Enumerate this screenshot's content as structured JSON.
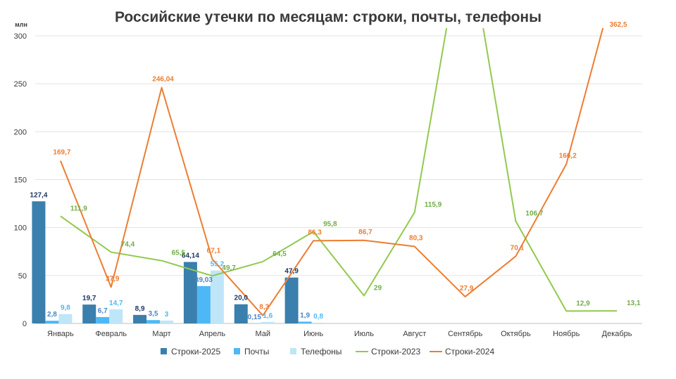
{
  "chart_data": {
    "type": "bar",
    "title": "Российские утечки по месяцам: строки, почты, телефоны",
    "ylabel": "млн",
    "ylim": [
      0,
      300
    ],
    "yticks": [
      0,
      50,
      100,
      150,
      200,
      250,
      300
    ],
    "grid": true,
    "legend_position": "bottom",
    "categories": [
      "Январь",
      "Февраль",
      "Март",
      "Апрель",
      "Май",
      "Июнь",
      "Июль",
      "Август",
      "Сентябрь",
      "Октябрь",
      "Ноябрь",
      "Декабрь"
    ],
    "bar_series": [
      {
        "name": "Строки-2025",
        "color": "#3a7fad",
        "label_color": "#1f3864",
        "values": [
          127.4,
          19.7,
          8.9,
          64.14,
          20.0,
          47.9,
          null,
          null,
          null,
          null,
          null,
          null
        ],
        "labels": [
          "127,4",
          "19,7",
          "8,9",
          "64,14",
          "20,0",
          "47,9",
          "",
          "",
          "",
          "",
          "",
          ""
        ]
      },
      {
        "name": "Почты",
        "color": "#4db8f5",
        "label_color": "#4a86c5",
        "values": [
          2.8,
          6.7,
          3.5,
          39.03,
          0.15,
          1.9,
          null,
          null,
          null,
          null,
          null,
          null
        ],
        "labels": [
          "2,8",
          "6,7",
          "3,5",
          "39,03",
          "0,15",
          "1,9",
          "",
          "",
          "",
          "",
          "",
          ""
        ]
      },
      {
        "name": "Телефоны",
        "color": "#bfe6f8",
        "label_color": "#4db8f5",
        "values": [
          9.8,
          14.7,
          3,
          55.2,
          1.6,
          0.8,
          null,
          null,
          null,
          null,
          null,
          null
        ],
        "labels": [
          "9,8",
          "14,7",
          "3",
          "55,2",
          "1,6",
          "0,8",
          "",
          "",
          "",
          "",
          "",
          ""
        ]
      }
    ],
    "line_series": [
      {
        "name": "Строки-2023",
        "color": "#92c94f",
        "label_color": "#70ad47",
        "values": [
          111.9,
          74.4,
          65.5,
          49.7,
          64.5,
          95.8,
          29,
          115.9,
          null,
          106.7,
          12.9,
          13.1
        ],
        "labels": [
          "111,9",
          "74,4",
          "65,5",
          "49,7",
          "64,5",
          "95,8",
          "29",
          "115,9",
          "",
          "106,7",
          "12,9",
          "13,1"
        ]
      },
      {
        "name": "Строки-2024",
        "color": "#ed7d31",
        "label_color": "#ed7d31",
        "values": [
          169.7,
          37.9,
          246.04,
          67.1,
          8.3,
          86.3,
          86.7,
          80.3,
          27.9,
          70.1,
          166.2,
          362.5
        ],
        "labels": [
          "169,7",
          "37,9",
          "246,04",
          "67,1",
          "8,3",
          "86,3",
          "86,7",
          "80,3",
          "27,9",
          "70,1",
          "166,2",
          "362,5"
        ]
      }
    ]
  }
}
